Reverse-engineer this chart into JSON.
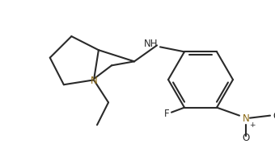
{
  "bg_color": "#ffffff",
  "line_color": "#2a2a2a",
  "N_color": "#8B6914",
  "line_width": 1.5,
  "figsize": [
    3.4,
    1.79
  ],
  "dpi": 100,
  "xlim": [
    0,
    340
  ],
  "ylim": [
    0,
    179
  ]
}
